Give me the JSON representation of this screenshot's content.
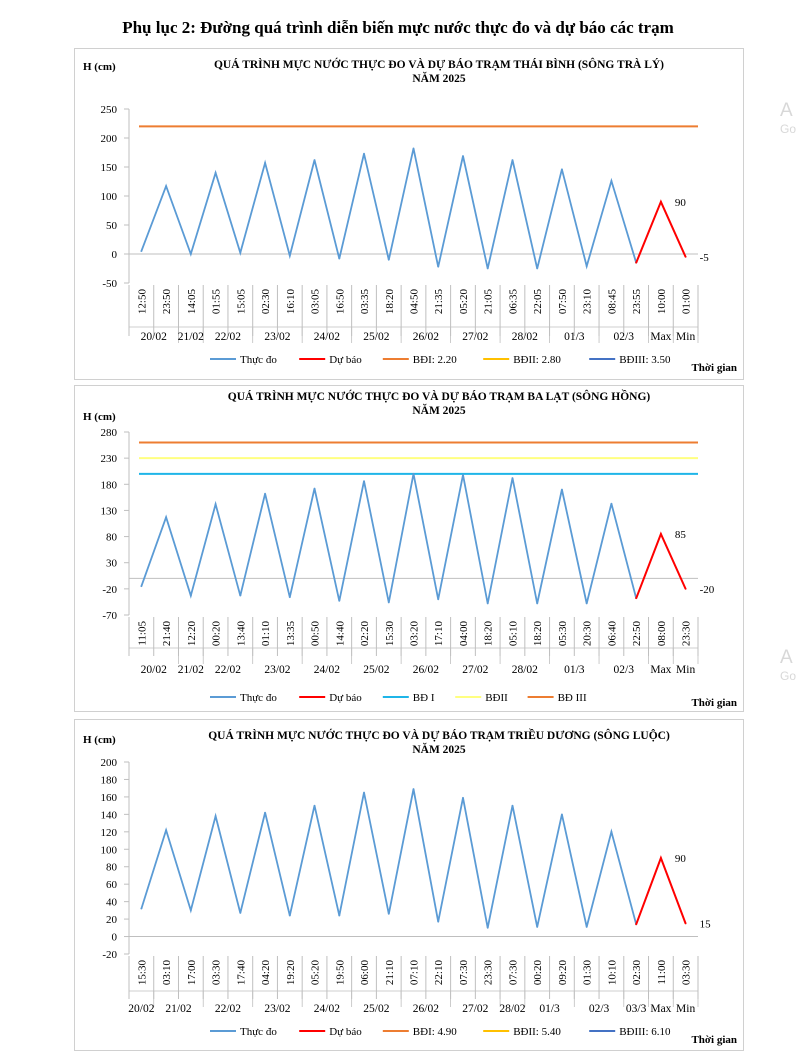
{
  "page_title": "Phụ lục 2: Đường quá trình diễn biến mực nước thực đo và dự báo các trạm",
  "watermark": {
    "big": "A",
    "small": "Go"
  },
  "colors": {
    "observed": "#5b9bd5",
    "forecast": "#ff0000",
    "bd1": "#ed7d31",
    "bd2": "#ffc000",
    "bd3": "#4472c4",
    "bd1_balat": "#1fb5e8",
    "bd2_balat": "#ffff80",
    "bd3_balat": "#ed7d31",
    "axis": "#d9d9d9"
  },
  "chart_data": [
    {
      "type": "line",
      "title_line1": "QUÁ TRÌNH  MỰC NƯỚC THỰC ĐO VÀ DỰ BÁO TRẠM  THÁI BÌNH (SÔNG TRÀ LÝ)",
      "title_line2": "NĂM 2025",
      "ylabel": "H (cm)",
      "xlabel": "Thời  gian",
      "ylim": [
        -50,
        250
      ],
      "yticks": [
        -50,
        0,
        50,
        100,
        150,
        200,
        250
      ],
      "categories": [
        "12:50",
        "23:50",
        "14:05",
        "01:55",
        "15:05",
        "02:30",
        "16:10",
        "03:05",
        "16:50",
        "03:35",
        "18:20",
        "04:50",
        "21:35",
        "05:20",
        "21:05",
        "06:35",
        "22:05",
        "07:50",
        "23:10",
        "08:45",
        "23:55",
        "10:00",
        "01:00"
      ],
      "date_groups": [
        {
          "label": "20/02",
          "from": 0,
          "to": 1
        },
        {
          "label": "21/02",
          "from": 2,
          "to": 2
        },
        {
          "label": "22/02",
          "from": 3,
          "to": 4
        },
        {
          "label": "23/02",
          "from": 5,
          "to": 6
        },
        {
          "label": "24/02",
          "from": 7,
          "to": 8
        },
        {
          "label": "25/02",
          "from": 9,
          "to": 10
        },
        {
          "label": "26/02",
          "from": 11,
          "to": 12
        },
        {
          "label": "27/02",
          "from": 13,
          "to": 14
        },
        {
          "label": "28/02",
          "from": 15,
          "to": 16
        },
        {
          "label": "01/3",
          "from": 17,
          "to": 18
        },
        {
          "label": "02/3",
          "from": 19,
          "to": 20
        },
        {
          "label": "Max",
          "from": 21,
          "to": 21
        },
        {
          "label": "Min",
          "from": 22,
          "to": 22
        }
      ],
      "series": [
        {
          "name": "Thực đo",
          "color_key": "observed",
          "style": "solid",
          "values": [
            5,
            117,
            0,
            140,
            2,
            157,
            -3,
            162,
            -8,
            173,
            -10,
            182,
            -22,
            169,
            -25,
            162,
            -25,
            146,
            -21,
            126,
            -15,
            null,
            null
          ]
        },
        {
          "name": "Dự báo",
          "color_key": "forecast",
          "style": "solid",
          "values": [
            null,
            null,
            null,
            null,
            null,
            null,
            null,
            null,
            null,
            null,
            null,
            null,
            null,
            null,
            null,
            null,
            null,
            null,
            null,
            null,
            -15,
            90,
            -5
          ]
        },
        {
          "name": "BĐI: 2.20",
          "color_key": "bd1",
          "style": "solid",
          "constant": 220
        },
        {
          "name": "BĐII: 2.80",
          "color_key": "bd2",
          "style": "solid",
          "constant": null
        },
        {
          "name": "BĐIII: 3.50",
          "color_key": "bd3",
          "style": "solid",
          "constant": null
        }
      ],
      "annotations": [
        {
          "text": "90",
          "index": 21,
          "value": 90
        },
        {
          "text": "-5",
          "index": 22,
          "value": -5
        }
      ]
    },
    {
      "type": "line",
      "title_line1": "QUÁ TRÌNH  MỰC NƯỚC THỰC ĐO VÀ DỰ BÁO TRẠM BA LẠT (SÔNG HỒNG)",
      "title_line2": "NĂM 2025",
      "ylabel": "H  (cm)",
      "xlabel": "Thời  gian",
      "ylim": [
        -70,
        280
      ],
      "yticks": [
        -70,
        -20,
        30,
        80,
        130,
        180,
        230,
        280
      ],
      "categories": [
        "11:05",
        "21:40",
        "12:20",
        "00:20",
        "13:40",
        "01:10",
        "13:35",
        "00:50",
        "14:40",
        "02:20",
        "15:30",
        "03:20",
        "17:10",
        "04:00",
        "18:20",
        "05:10",
        "18:20",
        "05:30",
        "20:30",
        "06:40",
        "22:50",
        "08:00",
        "23:30"
      ],
      "date_groups": [
        {
          "label": "20/02",
          "from": 0,
          "to": 1
        },
        {
          "label": "21/02",
          "from": 2,
          "to": 2
        },
        {
          "label": "22/02",
          "from": 3,
          "to": 4
        },
        {
          "label": "23/02",
          "from": 5,
          "to": 6
        },
        {
          "label": "24/02",
          "from": 7,
          "to": 8
        },
        {
          "label": "25/02",
          "from": 9,
          "to": 10
        },
        {
          "label": "26/02",
          "from": 11,
          "to": 12
        },
        {
          "label": "27/02",
          "from": 13,
          "to": 14
        },
        {
          "label": "28/02",
          "from": 15,
          "to": 16
        },
        {
          "label": "01/3",
          "from": 17,
          "to": 18
        },
        {
          "label": "02/3",
          "from": 19,
          "to": 20
        },
        {
          "label": "Max",
          "from": 21,
          "to": 21
        },
        {
          "label": "Min",
          "from": 22,
          "to": 22
        }
      ],
      "series": [
        {
          "name": "Thực đo",
          "color_key": "observed",
          "style": "solid",
          "values": [
            -15,
            117,
            -33,
            142,
            -33,
            162,
            -36,
            172,
            -43,
            186,
            -46,
            200,
            -40,
            198,
            -48,
            192,
            -48,
            170,
            -48,
            143,
            -38,
            null,
            null
          ]
        },
        {
          "name": "Dự báo",
          "color_key": "forecast",
          "style": "solid",
          "values": [
            null,
            null,
            null,
            null,
            null,
            null,
            null,
            null,
            null,
            null,
            null,
            null,
            null,
            null,
            null,
            null,
            null,
            null,
            null,
            null,
            -38,
            85,
            -20
          ]
        },
        {
          "name": "BĐ I",
          "color_key": "bd1_balat",
          "style": "solid",
          "constant": 200
        },
        {
          "name": "BĐII",
          "color_key": "bd2_balat",
          "style": "solid",
          "constant": 230
        },
        {
          "name": "BĐ III",
          "color_key": "bd3_balat",
          "style": "solid",
          "constant": 260
        }
      ],
      "annotations": [
        {
          "text": "85",
          "index": 21,
          "value": 85
        },
        {
          "text": "-20",
          "index": 22,
          "value": -20
        }
      ]
    },
    {
      "type": "line",
      "title_line1": "QUÁ TRÌNH  MỰC NƯỚC THỰC ĐO VÀ DỰ BÁO TRẠM TRIỀU  DƯƠNG  (SÔNG LUỘC)",
      "title_line2": "NĂM 2025",
      "ylabel": "H  (cm)",
      "xlabel": "Thời  gian",
      "ylim": [
        -20,
        200
      ],
      "yticks": [
        -20,
        0,
        20,
        40,
        60,
        80,
        100,
        120,
        140,
        160,
        180,
        200
      ],
      "categories": [
        "15:30",
        "03:10",
        "17:00",
        "03:30",
        "17:40",
        "04:20",
        "19:20",
        "05:20",
        "19:50",
        "06:00",
        "21:10",
        "07:10",
        "22:10",
        "07:30",
        "23:30",
        "07:30",
        "00:20",
        "09:20",
        "01:30",
        "10:10",
        "02:30",
        "11:00",
        "03:30"
      ],
      "date_groups": [
        {
          "label": "20/02",
          "from": 0,
          "to": 0
        },
        {
          "label": "21/02",
          "from": 1,
          "to": 2
        },
        {
          "label": "22/02",
          "from": 3,
          "to": 4
        },
        {
          "label": "23/02",
          "from": 5,
          "to": 6
        },
        {
          "label": "24/02",
          "from": 7,
          "to": 8
        },
        {
          "label": "25/02",
          "from": 9,
          "to": 10
        },
        {
          "label": "26/02",
          "from": 11,
          "to": 12
        },
        {
          "label": "27/02",
          "from": 13,
          "to": 14
        },
        {
          "label": "28/02",
          "from": 15,
          "to": 15
        },
        {
          "label": "01/3",
          "from": 16,
          "to": 17
        },
        {
          "label": "02/3",
          "from": 18,
          "to": 19
        },
        {
          "label": "03/3",
          "from": 20,
          "to": 20
        },
        {
          "label": "Max",
          "from": 21,
          "to": 21
        },
        {
          "label": "Min",
          "from": 22,
          "to": 22
        }
      ],
      "series": [
        {
          "name": "Thực đo",
          "color_key": "observed",
          "style": "solid",
          "values": [
            32,
            122,
            30,
            138,
            27,
            142,
            24,
            150,
            24,
            165,
            26,
            169,
            17,
            159,
            10,
            150,
            11,
            140,
            11,
            120,
            14,
            null,
            null
          ]
        },
        {
          "name": "Dự báo",
          "color_key": "forecast",
          "style": "solid",
          "values": [
            null,
            null,
            null,
            null,
            null,
            null,
            null,
            null,
            null,
            null,
            null,
            null,
            null,
            null,
            null,
            null,
            null,
            null,
            null,
            null,
            14,
            90,
            15
          ]
        },
        {
          "name": "BĐI: 4.90",
          "color_key": "bd1",
          "style": "solid",
          "constant": null
        },
        {
          "name": "BĐII: 5.40",
          "color_key": "bd2",
          "style": "solid",
          "constant": null
        },
        {
          "name": "BĐIII: 6.10",
          "color_key": "bd3",
          "style": "solid",
          "constant": null
        }
      ],
      "annotations": [
        {
          "text": "90",
          "index": 21,
          "value": 90
        },
        {
          "text": "15",
          "index": 22,
          "value": 15
        }
      ]
    }
  ]
}
